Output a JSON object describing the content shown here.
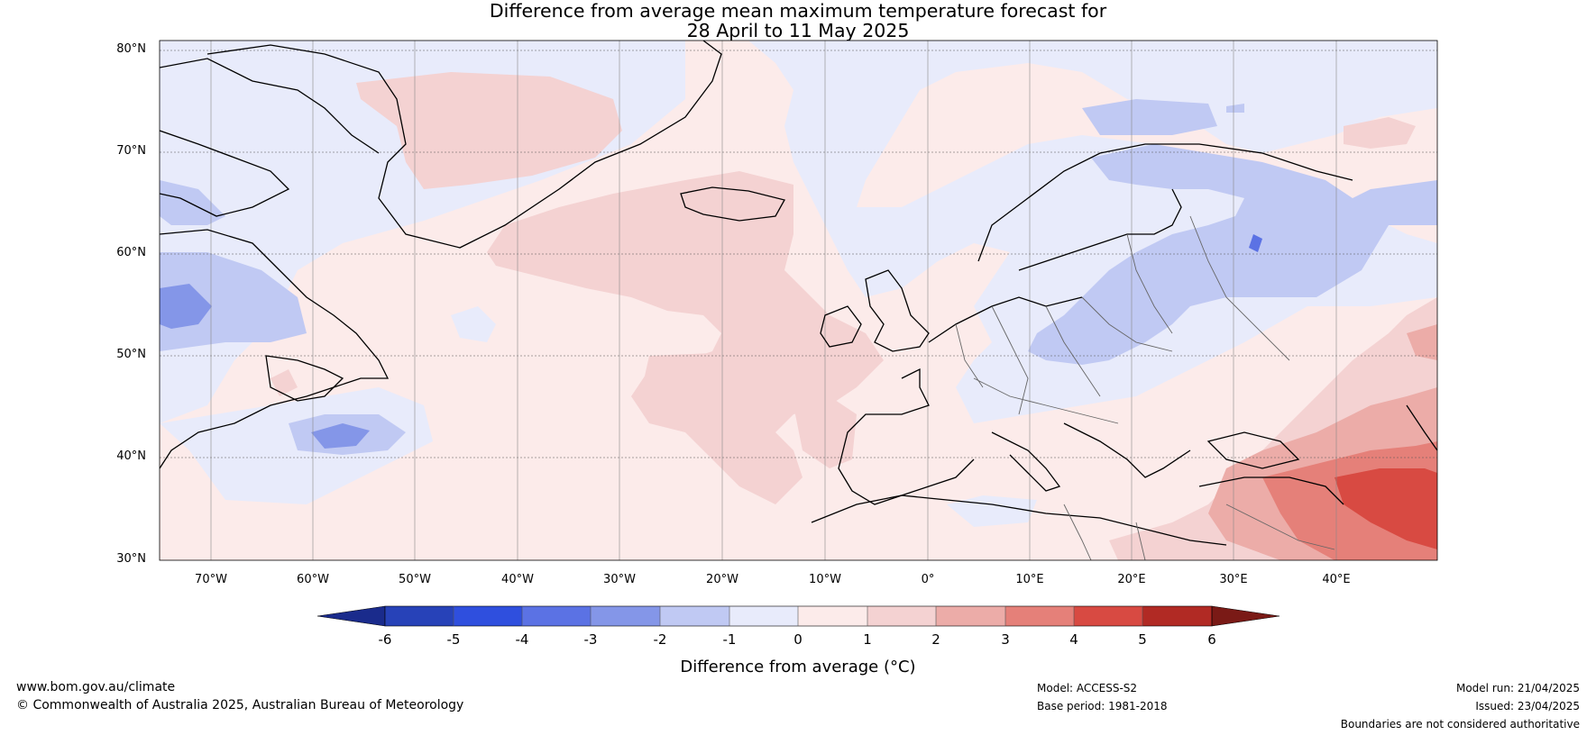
{
  "title": {
    "line1": "Difference from average mean maximum temperature forecast for",
    "line2": "28 April to 11 May 2025"
  },
  "map": {
    "lat_labels": [
      "80°N",
      "70°N",
      "60°N",
      "50°N",
      "40°N",
      "30°N"
    ],
    "lon_labels": [
      "70°W",
      "60°W",
      "50°W",
      "40°W",
      "30°W",
      "20°W",
      "10°W",
      "0°",
      "10°E",
      "20°E",
      "30°E",
      "40°E"
    ],
    "lat_range": [
      30,
      81
    ],
    "lon_range": [
      -75,
      50
    ]
  },
  "colorbar": {
    "ticks": [
      "-6",
      "-5",
      "-4",
      "-3",
      "-2",
      "-1",
      "0",
      "1",
      "2",
      "3",
      "4",
      "5",
      "6"
    ],
    "colors": [
      "#1a2b8c",
      "#2742b8",
      "#2f4fde",
      "#5b72e4",
      "#8496e8",
      "#c0c9f3",
      "#e8ebfb",
      "#fcebea",
      "#f4d2d2",
      "#ecaca8",
      "#e58079",
      "#d84a42",
      "#b12a24",
      "#7a1a16"
    ],
    "label": "Difference from average (°C)"
  },
  "footer": {
    "website": "www.bom.gov.au/climate",
    "copyright": "© Commonwealth of Australia 2025, Australian Bureau of Meteorology",
    "model": "Model: ACCESS-S2",
    "base_period": "Base period: 1981-2018",
    "model_run": "Model run: 21/04/2025",
    "issued": "Issued: 23/04/2025",
    "disclaimer": "Boundaries are not considered authoritative"
  }
}
